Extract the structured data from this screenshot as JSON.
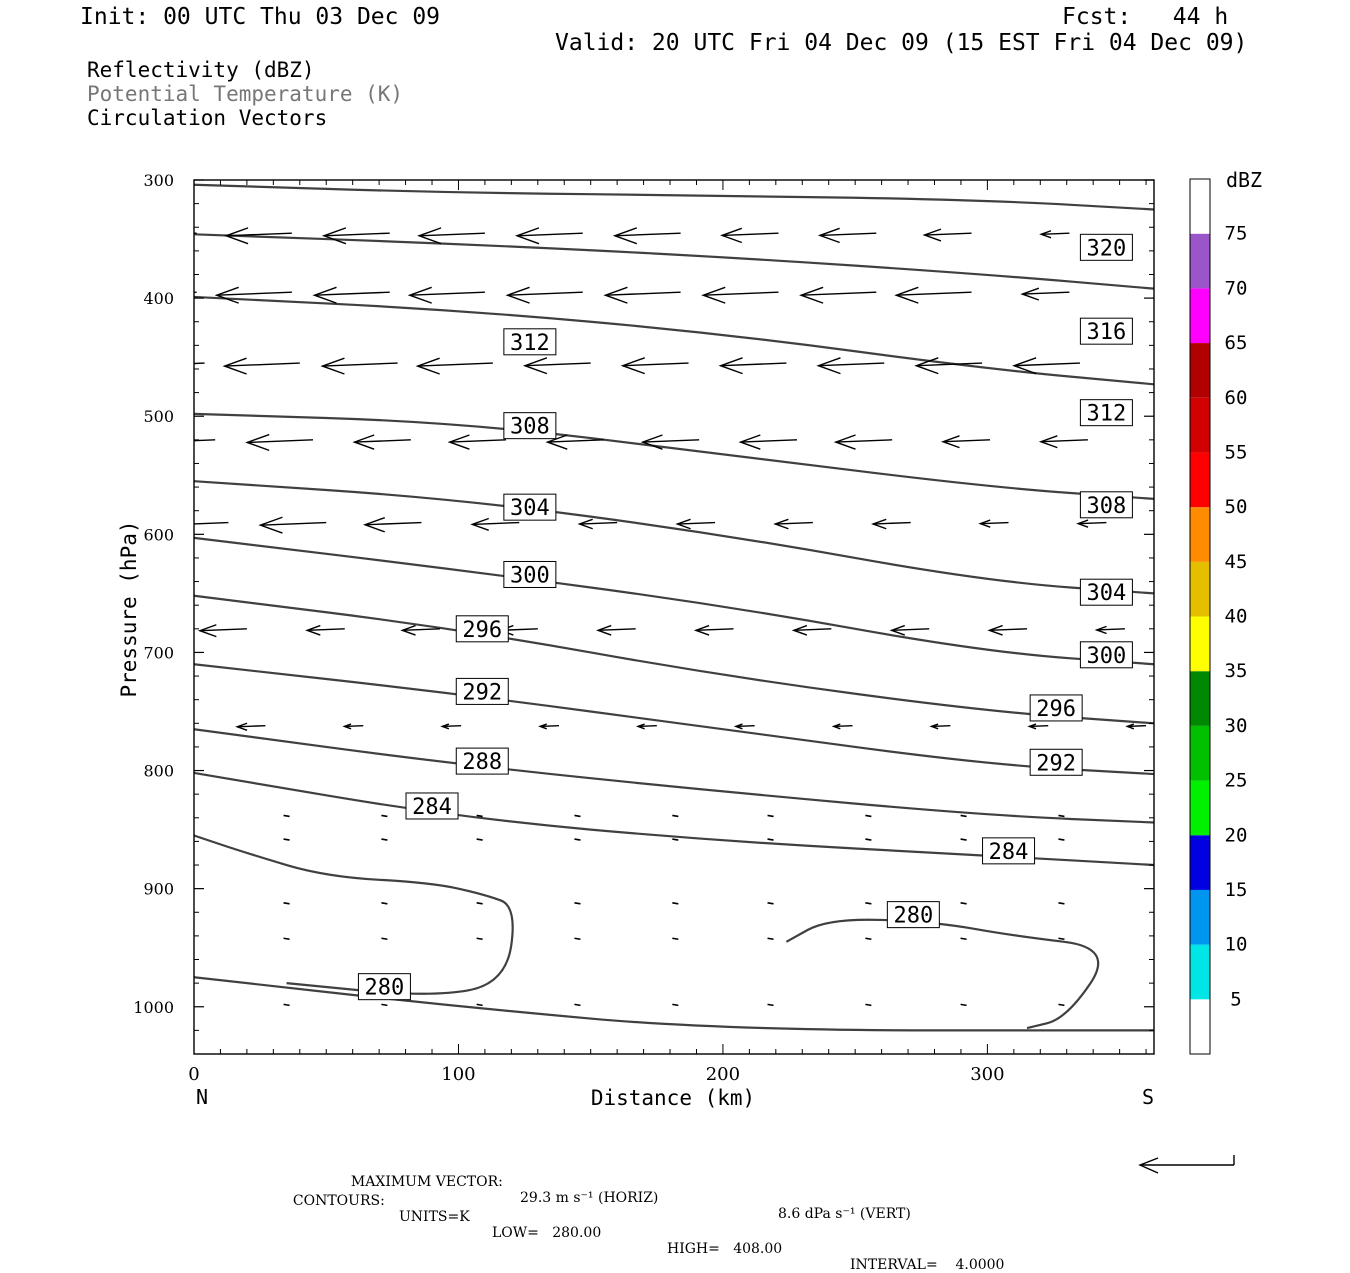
{
  "header": {
    "init": "Init: 00 UTC Thu 03 Dec 09",
    "fcst": "Fcst:   44 h",
    "valid": "Valid: 20 UTC Fri 04 Dec 09 (15 EST Fri 04 Dec 09)",
    "fields": [
      "Reflectivity (dBZ)",
      "Potential Temperature (K)",
      "Circulation Vectors"
    ]
  },
  "footer": {
    "max_vector_label": "MAXIMUM VECTOR:",
    "max_horiz": "29.3 m s⁻¹ (HORIZ)",
    "max_vert": "8.6 dPa s⁻¹ (VERT)",
    "contours_label": "CONTOURS:",
    "units": "UNITS=K",
    "low": "LOW=   280.00",
    "high": "HIGH=   408.00",
    "interval": "INTERVAL=    4.0000"
  },
  "colorbar": {
    "unit": "dBZ",
    "ticks": [
      5,
      10,
      15,
      20,
      25,
      30,
      35,
      40,
      45,
      50,
      55,
      60,
      65,
      70,
      75
    ],
    "colors": [
      "#ffffff",
      "#00e5e5",
      "#0096f0",
      "#0000e0",
      "#00f000",
      "#00c000",
      "#008800",
      "#ffff00",
      "#e5be00",
      "#ff8c00",
      "#ff0000",
      "#d20000",
      "#b00000",
      "#ff00ff",
      "#9a55c8",
      "#ffffff"
    ]
  },
  "chart_data": {
    "type": "line",
    "xlabel": "Distance (km)",
    "ylabel": "Pressure (hPa)",
    "xlim": [
      0,
      363
    ],
    "ylim": [
      1040,
      300
    ],
    "xticks": [
      0,
      100,
      200,
      300
    ],
    "yticks": [
      300,
      400,
      500,
      600,
      700,
      800,
      900,
      1000
    ],
    "x_end_labels": {
      "left": "N",
      "right": "S"
    },
    "contour_color": "#404040",
    "series": [
      {
        "name": "",
        "points": [
          [
            0,
            304
          ],
          [
            100,
            311
          ],
          [
            200,
            313
          ],
          [
            300,
            317
          ],
          [
            363,
            325
          ]
        ]
      },
      {
        "name": "320",
        "points": [
          [
            0,
            346
          ],
          [
            100,
            354
          ],
          [
            200,
            365
          ],
          [
            300,
            380
          ],
          [
            363,
            392
          ]
        ]
      },
      {
        "name": "316",
        "points": [
          [
            0,
            399
          ],
          [
            100,
            410
          ],
          [
            200,
            430
          ],
          [
            300,
            460
          ],
          [
            363,
            473
          ]
        ]
      },
      {
        "name": "312",
        "points": [
          [
            0,
            498
          ],
          [
            100,
            505
          ],
          [
            200,
            532
          ],
          [
            300,
            560
          ],
          [
            363,
            570
          ]
        ]
      },
      {
        "name": "308",
        "points": [
          [
            0,
            555
          ],
          [
            100,
            570
          ],
          [
            200,
            600
          ],
          [
            300,
            640
          ],
          [
            363,
            650
          ]
        ]
      },
      {
        "name": "304",
        "points": [
          [
            0,
            603
          ],
          [
            100,
            630
          ],
          [
            200,
            660
          ],
          [
            300,
            700
          ],
          [
            363,
            710
          ]
        ]
      },
      {
        "name": "300",
        "points": [
          [
            0,
            652
          ],
          [
            100,
            680
          ],
          [
            200,
            720
          ],
          [
            300,
            750
          ],
          [
            363,
            760
          ]
        ]
      },
      {
        "name": "296",
        "points": [
          [
            0,
            710
          ],
          [
            100,
            735
          ],
          [
            200,
            765
          ],
          [
            300,
            795
          ],
          [
            363,
            803
          ]
        ]
      },
      {
        "name": "292",
        "points": [
          [
            0,
            765
          ],
          [
            100,
            795
          ],
          [
            200,
            818
          ],
          [
            300,
            838
          ],
          [
            363,
            844
          ]
        ]
      },
      {
        "name": "288",
        "points": [
          [
            0,
            802
          ],
          [
            100,
            840
          ],
          [
            200,
            860
          ],
          [
            300,
            872
          ],
          [
            363,
            880
          ]
        ]
      },
      {
        "name": "284",
        "points": [
          [
            0,
            855
          ],
          [
            20,
            870
          ],
          [
            50,
            890
          ],
          [
            90,
            895
          ],
          [
            110,
            905
          ],
          [
            122,
            915
          ],
          [
            118,
            980
          ],
          [
            90,
            992
          ],
          [
            35,
            980
          ]
        ]
      },
      {
        "name": "280",
        "points": [
          [
            0,
            975
          ],
          [
            100,
            1000
          ],
          [
            200,
            1020
          ],
          [
            363,
            1020
          ]
        ]
      },
      {
        "name": "280",
        "points": [
          [
            224,
            945
          ],
          [
            240,
            925
          ],
          [
            280,
            928
          ],
          [
            310,
            940
          ],
          [
            348,
            950
          ],
          [
            330,
            1010
          ],
          [
            315,
            1018
          ]
        ]
      }
    ],
    "contour_labels": [
      {
        "text": "320",
        "x": 345,
        "p": 357
      },
      {
        "text": "316",
        "x": 345,
        "p": 428
      },
      {
        "text": "312",
        "x": 127,
        "p": 437
      },
      {
        "text": "312",
        "x": 345,
        "p": 497
      },
      {
        "text": "308",
        "x": 127,
        "p": 508
      },
      {
        "text": "308",
        "x": 345,
        "p": 575
      },
      {
        "text": "304",
        "x": 127,
        "p": 577
      },
      {
        "text": "304",
        "x": 345,
        "p": 649
      },
      {
        "text": "300",
        "x": 127,
        "p": 634
      },
      {
        "text": "300",
        "x": 345,
        "p": 702
      },
      {
        "text": "296",
        "x": 109,
        "p": 680
      },
      {
        "text": "296",
        "x": 326,
        "p": 747
      },
      {
        "text": "292",
        "x": 109,
        "p": 733
      },
      {
        "text": "292",
        "x": 326,
        "p": 793
      },
      {
        "text": "288",
        "x": 109,
        "p": 792
      },
      {
        "text": "284",
        "x": 90,
        "p": 830
      },
      {
        "text": "284",
        "x": 308,
        "p": 868
      },
      {
        "text": "280",
        "x": 272,
        "p": 922
      },
      {
        "text": "280",
        "x": 72,
        "p": 983
      }
    ],
    "vectors": [
      {
        "p": 345,
        "x": [
          1,
          37,
          74,
          110,
          147,
          184,
          221,
          258,
          294,
          331
        ],
        "u": -25,
        "len": [
          7,
          7,
          7,
          7,
          7,
          7,
          6,
          6,
          5,
          3
        ]
      },
      {
        "p": 395,
        "x": [
          1,
          37,
          74,
          110,
          147,
          184,
          221,
          258,
          294,
          331
        ],
        "u": -29,
        "len": [
          8,
          8,
          8,
          8,
          8,
          8,
          8,
          8,
          8,
          5
        ]
      },
      {
        "p": 455,
        "x": [
          4,
          40,
          77,
          113,
          150,
          187,
          224,
          261,
          298,
          335
        ],
        "u": -28,
        "len": [
          8,
          8,
          8,
          8,
          7,
          7,
          7,
          7,
          7,
          7
        ]
      },
      {
        "p": 520,
        "x": [
          8,
          45,
          82,
          118,
          155,
          191,
          228,
          264,
          301,
          338
        ],
        "u": -25,
        "len": [
          8,
          7,
          6,
          6,
          6,
          6,
          6,
          6,
          5,
          5
        ]
      },
      {
        "p": 590,
        "x": [
          13,
          50,
          86,
          123,
          160,
          197,
          234,
          271,
          308,
          345
        ],
        "u": -20,
        "len": [
          7,
          7,
          6,
          5,
          4,
          4,
          4,
          4,
          3,
          3
        ]
      },
      {
        "p": 680,
        "x": [
          20,
          57,
          93,
          130,
          167,
          204,
          241,
          278,
          315,
          352
        ],
        "u": -14,
        "len": [
          5,
          4,
          4,
          4,
          4,
          4,
          4,
          4,
          4,
          3
        ]
      },
      {
        "p": 762,
        "x": [
          27,
          64,
          101,
          138,
          175,
          212,
          249,
          286,
          323,
          360
        ],
        "u": -8,
        "len": [
          3,
          2,
          2,
          2,
          2,
          2,
          2,
          2,
          2,
          2
        ]
      }
    ],
    "dots": {
      "p_levels": [
        838,
        858,
        912,
        942,
        998
      ],
      "x": [
        35,
        72,
        108,
        145,
        182,
        218,
        255,
        291,
        328
      ]
    },
    "ref_vector_scale": "29.3 m s⁻¹ (HORIZ)"
  }
}
